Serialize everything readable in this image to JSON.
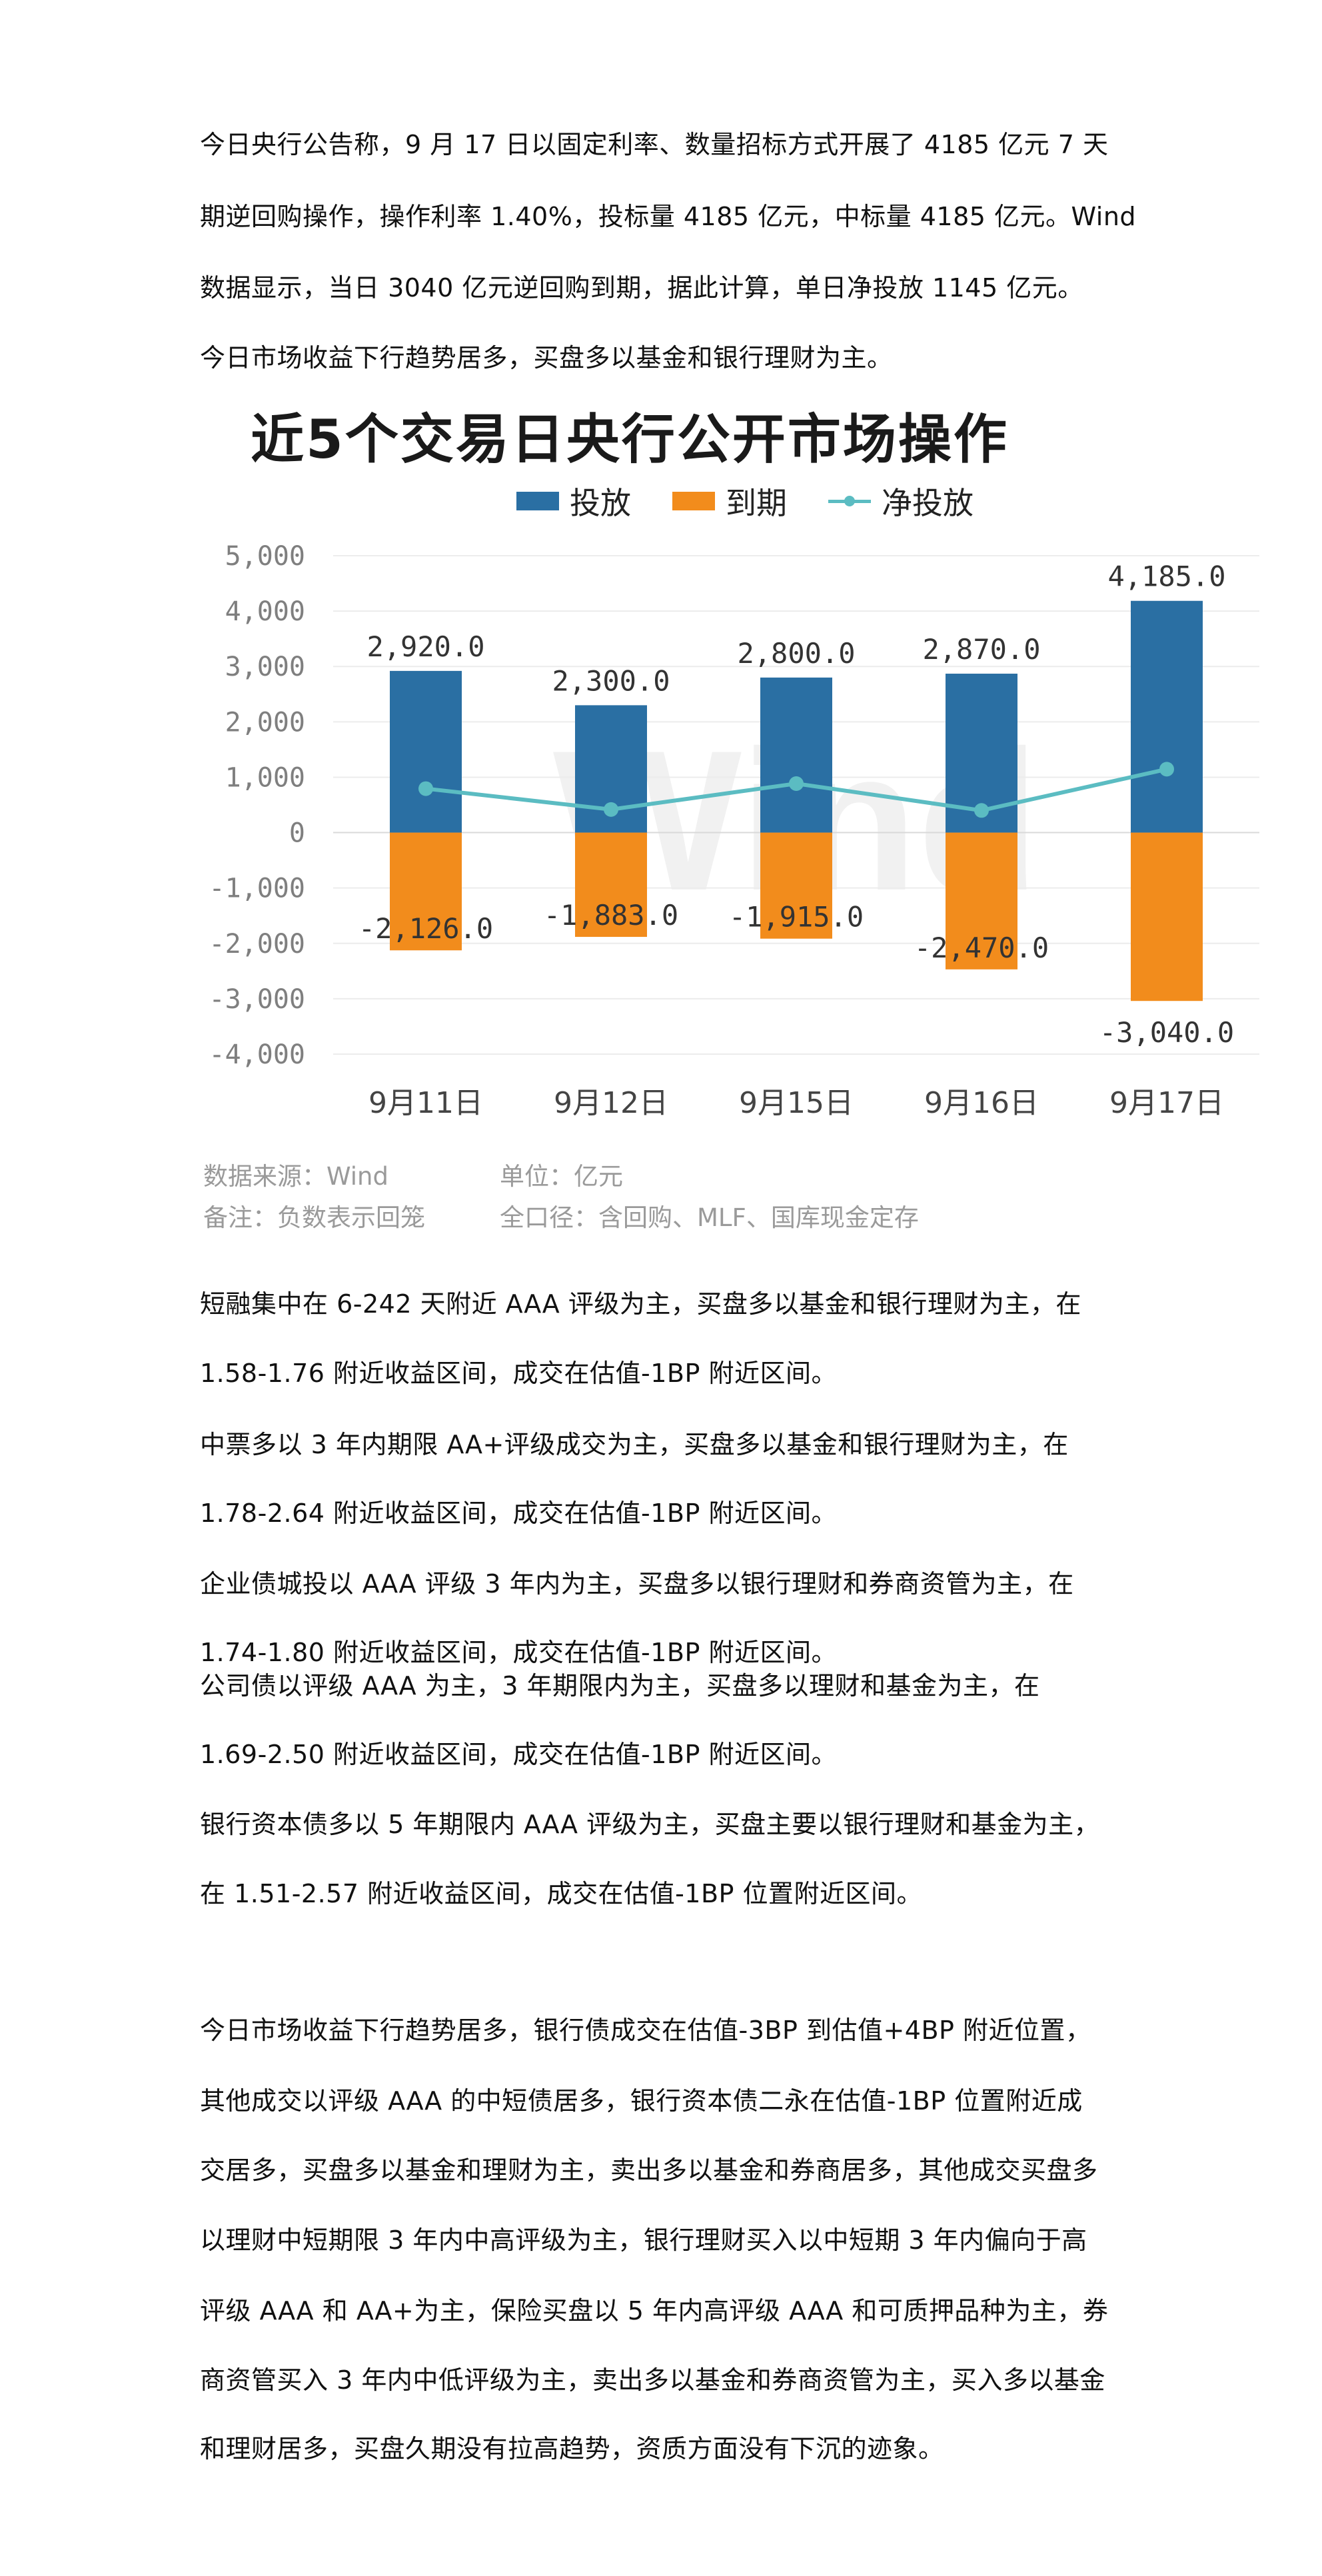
{
  "paragraphs": {
    "p1": [
      "今日央行公告称，9 月 17 日以固定利率、数量招标方式开展了 4185 亿元 7 天",
      "期逆回购操作，操作利率 1.40%，投标量 4185 亿元，中标量 4185 亿元。Wind",
      "数据显示，当日 3040 亿元逆回购到期，据此计算，单日净投放 1145 亿元。",
      "今日市场收益下行趋势居多，买盘多以基金和银行理财为主。"
    ],
    "p2": [
      "短融集中在 6-242 天附近 AAA 评级为主，买盘多以基金和银行理财为主，在",
      "1.58-1.76 附近收益区间，成交在估值-1BP 附近区间。",
      "中票多以 3 年内期限 AA+评级成交为主，买盘多以基金和银行理财为主，在",
      "1.78-2.64 附近收益区间，成交在估值-1BP 附近区间。",
      "企业债城投以 AAA 评级 3 年内为主，买盘多以银行理财和券商资管为主，在",
      "1.74-1.80 附近收益区间，成交在估值-1BP 附近区间。",
      "公司债以评级 AAA 为主，3 年期限内为主，买盘多以理财和基金为主，在",
      "1.69-2.50 附近收益区间，成交在估值-1BP 附近区间。",
      "银行资本债多以 5 年期限内 AAA 评级为主，买盘主要以银行理财和基金为主，",
      "在 1.51-2.57 附近收益区间，成交在估值-1BP 位置附近区间。"
    ],
    "p3": [
      "今日市场收益下行趋势居多，银行债成交在估值-3BP 到估值+4BP 附近位置，",
      "其他成交以评级 AAA 的中短债居多，银行资本债二永在估值-1BP 位置附近成",
      "交居多，买盘多以基金和理财为主，卖出多以基金和券商居多，其他成交买盘多",
      "以理财中短期限 3 年内中高评级为主，银行理财买入以中短期 3 年内偏向于高",
      "评级 AAA 和 AA+为主，保险买盘以 5 年内高评级 AAA 和可质押品种为主，券",
      "商资管买入 3 年内中低评级为主，卖出多以基金和券商资管为主，买入多以基金",
      "和理财居多，买盘久期没有拉高趋势，资质方面没有下沉的迹象。"
    ]
  },
  "chart_data": {
    "type": "bar",
    "title": "近5个交易日央行公开市场操作",
    "categories": [
      "9月11日",
      "9月12日",
      "9月15日",
      "9月16日",
      "9月17日"
    ],
    "series": [
      {
        "name": "投放",
        "kind": "bar",
        "color": "#2a6fa3",
        "values": [
          2920.0,
          2300.0,
          2800.0,
          2870.0,
          4185.0
        ],
        "labels": [
          "2,920.0",
          "2,300.0",
          "2,800.0",
          "2,870.0",
          "4,185.0"
        ]
      },
      {
        "name": "到期",
        "kind": "bar",
        "color": "#f28c1c",
        "values": [
          -2126.0,
          -1883.0,
          -1915.0,
          -2470.0,
          -3040.0
        ],
        "labels": [
          "-2,126.0",
          "-1,883.0",
          "-1,915.0",
          "-2,470.0",
          "-3,040.0"
        ]
      },
      {
        "name": "净投放",
        "kind": "line",
        "color": "#5bbcc2",
        "values": [
          794.0,
          417.0,
          885.0,
          400.0,
          1145.0
        ]
      }
    ],
    "ylim": [
      -4000,
      5000
    ],
    "yticks": [
      5000,
      4000,
      3000,
      2000,
      1000,
      0,
      -1000,
      -2000,
      -3000,
      -4000
    ],
    "ytick_labels": [
      "5,000",
      "4,000",
      "3,000",
      "2,000",
      "1,000",
      "0",
      "-1,000",
      "-2,000",
      "-3,000",
      "-4,000"
    ],
    "grid": true,
    "legend_position": "top",
    "watermark": "Wind",
    "notes": {
      "source": "数据来源：Wind",
      "unit": "单位：亿元",
      "remark": "备注：负数表示回笼",
      "scope": "全口径：含回购、MLF、国库现金定存"
    }
  }
}
